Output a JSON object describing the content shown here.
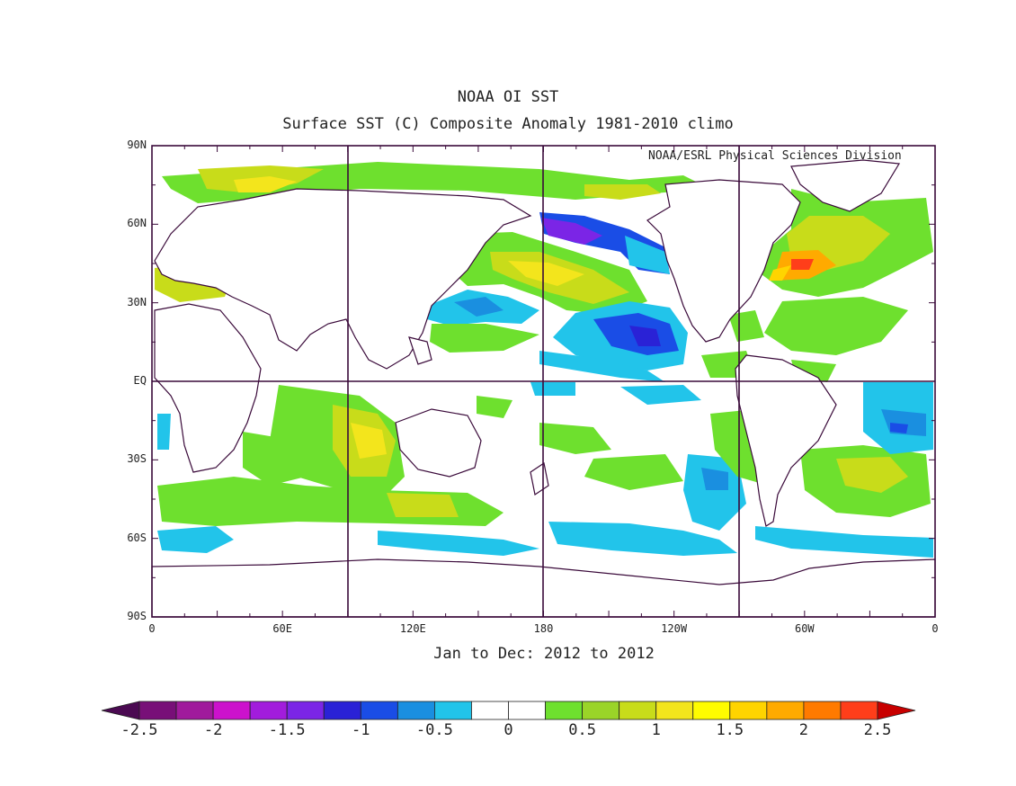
{
  "title": "NOAA OI SST",
  "subtitle": "Surface SST (C) Composite Anomaly 1981-2010 climo",
  "credit": "NOAA/ESRL Physical Sciences Division",
  "period": "Jan to Dec: 2012 to 2012",
  "lat_labels": [
    "90N",
    "60N",
    "30N",
    "EQ",
    "30S",
    "60S",
    "90S"
  ],
  "lon_labels": [
    "0",
    "60E",
    "120E",
    "180",
    "120W",
    "60W",
    "0"
  ],
  "colorbar": {
    "colors": [
      "#4b0a52",
      "#780f78",
      "#a01a9c",
      "#cc12cc",
      "#a21cdc",
      "#7b25e6",
      "#2a22d6",
      "#1a4de6",
      "#1a8fe0",
      "#22c4ea",
      "#ffffff",
      "#ffffff",
      "#6ee02e",
      "#9ad428",
      "#c8dc1a",
      "#f3e51c",
      "#fffc00",
      "#ffd400",
      "#ffaa00",
      "#ff7a00",
      "#ff3e1a",
      "#c80000"
    ],
    "labels": [
      "-2.5",
      "-2",
      "-1.5",
      "-1",
      "-0.5",
      "0",
      "0.5",
      "1",
      "1.5",
      "2",
      "2.5"
    ]
  },
  "colors": {
    "green": "#6ee02e",
    "lime": "#9ad428",
    "yellowgreen": "#c8dc1a",
    "yellow": "#f3e51c",
    "orange": "#ffaa00",
    "red": "#ff3e1a",
    "cyan": "#22c4ea",
    "lightblue": "#1a8fe0",
    "blue": "#1a4de6",
    "purple": "#7b25e6",
    "coast": "#3a0a3a"
  }
}
